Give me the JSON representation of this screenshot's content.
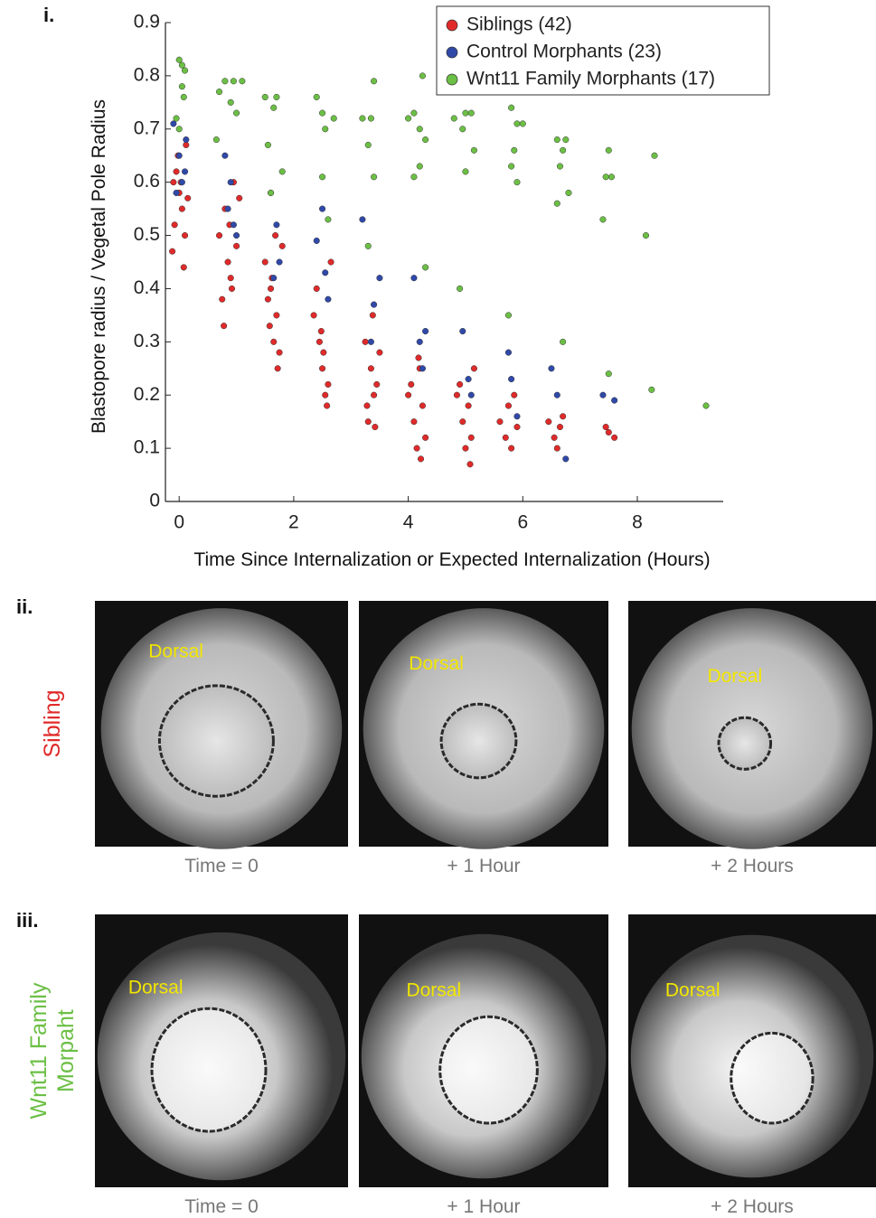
{
  "chart_data": {
    "type": "scatter",
    "panel_label": "i.",
    "x_label": "Time Since Internalization or Expected Internalization (Hours)",
    "y_label": "Blastopore radius / Vegetal Pole Radius",
    "xlim": [
      -0.24,
      9.5
    ],
    "xticks": [
      0,
      2,
      4,
      6,
      8
    ],
    "ylim": [
      0,
      0.9
    ],
    "yticks": [
      0,
      0.1,
      0.2,
      0.3,
      0.4,
      0.5,
      0.6,
      0.7,
      0.8,
      0.9
    ],
    "legend": "upper right",
    "series": [
      {
        "name": "Siblings (42)",
        "color": "#e02a2a",
        "x": [
          -0.1,
          -0.05,
          0.0,
          0.05,
          0.1,
          -0.12,
          0.08,
          -0.02,
          0.12,
          -0.08,
          0.03,
          0.15,
          0.7,
          0.8,
          0.85,
          0.9,
          0.75,
          0.95,
          1.0,
          0.88,
          0.78,
          0.92,
          1.05,
          1.5,
          1.6,
          1.7,
          1.65,
          1.75,
          1.72,
          1.55,
          1.62,
          1.8,
          1.68,
          1.58,
          2.35,
          2.45,
          2.5,
          2.55,
          2.6,
          2.4,
          2.65,
          2.52,
          2.48,
          2.58,
          3.25,
          3.35,
          3.4,
          3.3,
          3.45,
          3.5,
          3.38,
          3.28,
          3.42,
          4.0,
          4.1,
          4.15,
          4.2,
          4.25,
          4.05,
          4.3,
          4.18,
          4.22,
          4.85,
          4.95,
          5.0,
          5.05,
          5.1,
          4.9,
          5.08,
          5.15,
          5.6,
          5.7,
          5.75,
          5.8,
          5.85,
          5.9,
          6.45,
          6.55,
          6.6,
          6.65,
          6.7,
          7.45,
          7.5,
          7.6
        ],
        "values": [
          0.6,
          0.62,
          0.58,
          0.55,
          0.5,
          0.47,
          0.44,
          0.65,
          0.67,
          0.52,
          0.6,
          0.57,
          0.5,
          0.55,
          0.45,
          0.42,
          0.38,
          0.6,
          0.48,
          0.52,
          0.33,
          0.4,
          0.57,
          0.45,
          0.4,
          0.35,
          0.3,
          0.28,
          0.25,
          0.38,
          0.42,
          0.48,
          0.5,
          0.33,
          0.35,
          0.3,
          0.25,
          0.2,
          0.22,
          0.4,
          0.45,
          0.28,
          0.32,
          0.18,
          0.3,
          0.25,
          0.2,
          0.15,
          0.22,
          0.28,
          0.35,
          0.18,
          0.14,
          0.2,
          0.15,
          0.1,
          0.25,
          0.18,
          0.22,
          0.12,
          0.27,
          0.08,
          0.2,
          0.15,
          0.1,
          0.18,
          0.12,
          0.22,
          0.07,
          0.25,
          0.15,
          0.12,
          0.18,
          0.1,
          0.2,
          0.14,
          0.15,
          0.12,
          0.1,
          0.14,
          0.16,
          0.14,
          0.13,
          0.12
        ]
      },
      {
        "name": "Control Morphants (23)",
        "color": "#3049a8",
        "x": [
          -0.1,
          0.0,
          0.1,
          0.05,
          -0.05,
          0.12,
          0.8,
          0.9,
          0.85,
          0.95,
          1.0,
          1.6,
          1.7,
          1.75,
          1.65,
          2.4,
          2.5,
          2.55,
          2.6,
          3.2,
          3.4,
          3.5,
          3.35,
          4.1,
          4.2,
          4.3,
          4.25,
          4.95,
          5.05,
          5.1,
          5.75,
          5.8,
          5.9,
          6.5,
          6.6,
          6.75,
          7.4,
          7.6
        ],
        "values": [
          0.71,
          0.65,
          0.62,
          0.6,
          0.58,
          0.68,
          0.65,
          0.6,
          0.55,
          0.52,
          0.5,
          0.58,
          0.52,
          0.45,
          0.42,
          0.49,
          0.55,
          0.43,
          0.38,
          0.53,
          0.37,
          0.42,
          0.3,
          0.42,
          0.3,
          0.32,
          0.25,
          0.32,
          0.23,
          0.2,
          0.28,
          0.23,
          0.16,
          0.25,
          0.2,
          0.08,
          0.2,
          0.19
        ]
      },
      {
        "name": "Wnt11 Family Morphants (17)",
        "color": "#6cbf45",
        "x": [
          0.0,
          0.05,
          0.1,
          0.05,
          0.08,
          -0.05,
          0.0,
          0.7,
          0.8,
          0.95,
          1.1,
          0.9,
          1.0,
          0.65,
          1.5,
          1.7,
          1.65,
          1.55,
          1.8,
          1.6,
          2.4,
          2.5,
          2.55,
          2.7,
          2.5,
          2.6,
          3.2,
          3.4,
          3.35,
          3.3,
          3.4,
          3.3,
          4.0,
          4.1,
          4.2,
          4.3,
          4.2,
          4.1,
          4.25,
          4.3,
          4.8,
          5.0,
          5.1,
          4.95,
          5.15,
          5.0,
          4.9,
          5.8,
          5.9,
          6.0,
          5.85,
          5.8,
          5.9,
          5.75,
          6.6,
          6.75,
          6.7,
          6.65,
          6.8,
          6.6,
          6.7,
          7.5,
          7.55,
          7.45,
          7.4,
          7.5,
          8.3,
          8.15,
          8.25,
          9.2
        ],
        "values": [
          0.83,
          0.82,
          0.81,
          0.78,
          0.76,
          0.72,
          0.7,
          0.77,
          0.79,
          0.79,
          0.79,
          0.75,
          0.73,
          0.68,
          0.76,
          0.76,
          0.74,
          0.67,
          0.62,
          0.58,
          0.76,
          0.73,
          0.7,
          0.72,
          0.61,
          0.53,
          0.72,
          0.79,
          0.72,
          0.67,
          0.61,
          0.48,
          0.72,
          0.73,
          0.7,
          0.68,
          0.63,
          0.61,
          0.8,
          0.44,
          0.72,
          0.73,
          0.73,
          0.7,
          0.66,
          0.62,
          0.4,
          0.74,
          0.71,
          0.71,
          0.66,
          0.63,
          0.6,
          0.35,
          0.68,
          0.68,
          0.66,
          0.63,
          0.58,
          0.56,
          0.3,
          0.66,
          0.61,
          0.61,
          0.53,
          0.24,
          0.65,
          0.5,
          0.21,
          0.18
        ]
      }
    ]
  },
  "panels": [
    {
      "label": "ii.",
      "row_label": [
        "Sibling"
      ],
      "images": [
        {
          "annotation": "Dorsal",
          "caption": "Time = 0"
        },
        {
          "annotation": "Dorsal",
          "caption": "+ 1 Hour"
        },
        {
          "annotation": "Dorsal",
          "caption": "+ 2 Hours"
        }
      ]
    },
    {
      "label": "iii.",
      "row_label": [
        "Wnt11 Family",
        "Morpaht"
      ],
      "images": [
        {
          "annotation": "Dorsal",
          "caption": "Time = 0"
        },
        {
          "annotation": "Dorsal",
          "caption": "+ 1 Hour"
        },
        {
          "annotation": "Dorsal",
          "caption": "+ 2 Hours"
        }
      ]
    }
  ]
}
